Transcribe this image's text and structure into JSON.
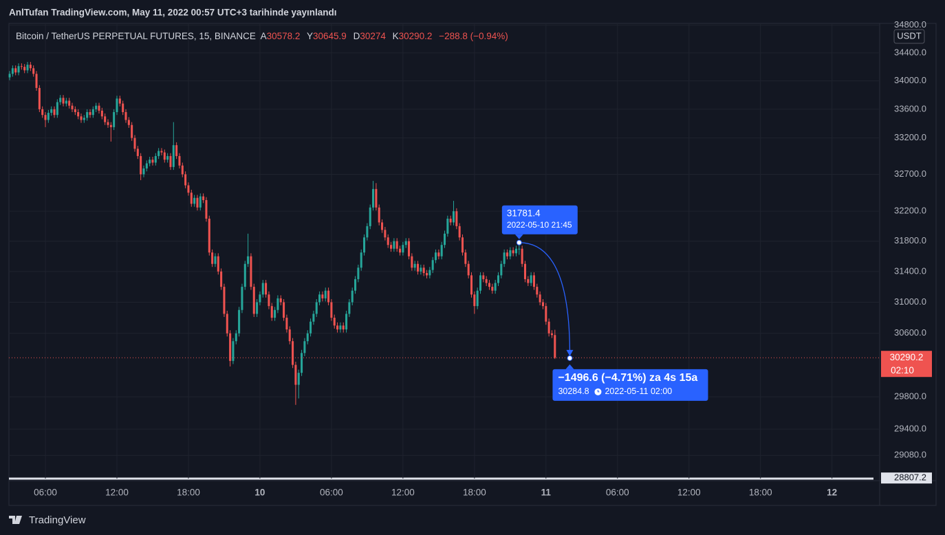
{
  "header": {
    "published": "AnlTufan TradingView.com, May 11, 2022 00:57 UTC+3 tarihinde yayınlandı"
  },
  "footer": {
    "brand": "TradingView"
  },
  "chart_data": {
    "type": "candlestick",
    "title": "Bitcoin / TetherUS PERPETUAL FUTURES, 15, BINANCE",
    "ohlc_labels": [
      "A",
      "Y",
      "D",
      "K"
    ],
    "change": "−288.8 (−0.94%)",
    "currency": "USDT",
    "countdown": "02:10",
    "up_color": "#26a69a",
    "down_color": "#ef5350",
    "grid": true,
    "log_scale": true,
    "xlim": [
      2.94,
      76
    ],
    "xticks": [
      {
        "value": 6,
        "label": "06:00"
      },
      {
        "value": 12,
        "label": "12:00"
      },
      {
        "value": 18,
        "label": "18:00"
      },
      {
        "value": 24,
        "label": "10"
      },
      {
        "value": 30,
        "label": "06:00"
      },
      {
        "value": 36,
        "label": "12:00"
      },
      {
        "value": 42,
        "label": "18:00"
      },
      {
        "value": 48,
        "label": "11"
      },
      {
        "value": 54,
        "label": "06:00"
      },
      {
        "value": 60,
        "label": "12:00"
      },
      {
        "value": 66,
        "label": "18:00"
      },
      {
        "value": 72,
        "label": "12"
      }
    ],
    "ylim": [
      28800,
      34816
    ],
    "yticks": [
      {
        "value": 34800,
        "label": "34800.0"
      },
      {
        "value": 34400,
        "label": "34400.0"
      },
      {
        "value": 34000,
        "label": "34000.0"
      },
      {
        "value": 33600,
        "label": "33600.0"
      },
      {
        "value": 33200,
        "label": "33200.0"
      },
      {
        "value": 32700,
        "label": "32700.0"
      },
      {
        "value": 32200,
        "label": "32200.0"
      },
      {
        "value": 31800,
        "label": "31800.0"
      },
      {
        "value": 31400,
        "label": "31400.0"
      },
      {
        "value": 31000,
        "label": "31000.0"
      },
      {
        "value": 30600,
        "label": "30600.0"
      },
      {
        "value": 29800,
        "label": "29800.0"
      },
      {
        "value": 29400,
        "label": "29400.0"
      },
      {
        "value": 29080,
        "label": "29080.0"
      },
      28807.2
    ],
    "measure": {
      "start": {
        "x": 45.75,
        "y": 31781.4,
        "label": "2022-05-10 21:45"
      },
      "end": {
        "x": 50,
        "y": 30284.8,
        "label": "2022-05-11  02:00"
      },
      "summary": "−1496.6 (−4.71%) za 4s 15a"
    },
    "x": [
      3,
      3.25,
      3.5,
      3.75,
      4,
      4.25,
      4.5,
      4.75,
      5,
      5.25,
      5.5,
      5.75,
      6,
      6.25,
      6.5,
      6.75,
      7,
      7.25,
      7.5,
      7.75,
      8,
      8.25,
      8.5,
      8.75,
      9,
      9.25,
      9.5,
      9.75,
      10,
      10.25,
      10.5,
      10.75,
      11,
      11.25,
      11.5,
      11.75,
      12,
      12.25,
      12.5,
      12.75,
      13,
      13.25,
      13.5,
      13.75,
      14,
      14.25,
      14.5,
      14.75,
      15,
      15.25,
      15.5,
      15.75,
      16,
      16.25,
      16.5,
      16.75,
      17,
      17.25,
      17.5,
      17.75,
      18,
      18.25,
      18.5,
      18.75,
      19,
      19.25,
      19.5,
      19.75,
      20,
      20.25,
      20.5,
      20.75,
      21,
      21.25,
      21.5,
      21.75,
      22,
      22.25,
      22.5,
      22.75,
      23,
      23.25,
      23.5,
      23.75,
      24,
      24.25,
      24.5,
      24.75,
      25,
      25.25,
      25.5,
      25.75,
      26,
      26.25,
      26.5,
      26.75,
      27,
      27.25,
      27.5,
      27.75,
      28,
      28.25,
      28.5,
      28.75,
      29,
      29.25,
      29.5,
      29.75,
      30,
      30.25,
      30.5,
      30.75,
      31,
      31.25,
      31.5,
      31.75,
      32,
      32.25,
      32.5,
      32.75,
      33,
      33.25,
      33.5,
      33.75,
      34,
      34.25,
      34.5,
      34.75,
      35,
      35.25,
      35.5,
      35.75,
      36,
      36.25,
      36.5,
      36.75,
      37,
      37.25,
      37.5,
      37.75,
      38,
      38.25,
      38.5,
      38.75,
      39,
      39.25,
      39.5,
      39.75,
      40,
      40.25,
      40.5,
      40.75,
      41,
      41.25,
      41.5,
      41.75,
      42,
      42.25,
      42.5,
      42.75,
      43,
      43.25,
      43.5,
      43.75,
      44,
      44.25,
      44.5,
      44.75,
      45,
      45.25,
      45.5,
      45.75,
      46,
      46.25,
      46.5,
      46.75,
      47,
      47.25,
      47.5,
      47.75,
      48,
      48.25,
      48.5,
      48.75
    ],
    "open": [
      34050,
      34100,
      34180,
      34120,
      34210,
      34200,
      34150,
      34230,
      34180,
      34100,
      33900,
      33600,
      33520,
      33450,
      33550,
      33600,
      33520,
      33700,
      33760,
      33680,
      33720,
      33650,
      33600,
      33560,
      33500,
      33450,
      33480,
      33560,
      33520,
      33600,
      33650,
      33580,
      33500,
      33420,
      33380,
      33350,
      33560,
      33750,
      33680,
      33560,
      33450,
      33380,
      33200,
      33050,
      32950,
      32700,
      32780,
      32850,
      32900,
      32860,
      32950,
      33020,
      33000,
      32900,
      32950,
      32800,
      33100,
      32950,
      32820,
      32700,
      32550,
      32450,
      32300,
      32380,
      32250,
      32400,
      32350,
      32100,
      31650,
      31500,
      31600,
      31400,
      31200,
      30850,
      30600,
      30250,
      30500,
      30600,
      30900,
      31200,
      31500,
      31600,
      31200,
      30850,
      31000,
      31100,
      31250,
      31100,
      30950,
      30800,
      30900,
      31050,
      31000,
      30800,
      30650,
      30500,
      30200,
      29950,
      30100,
      30350,
      30500,
      30600,
      30750,
      30850,
      31000,
      31100,
      31050,
      31150,
      31000,
      30800,
      30700,
      30650,
      30700,
      30650,
      30850,
      31000,
      31150,
      31300,
      31450,
      31650,
      31850,
      32000,
      32250,
      32500,
      32250,
      32050,
      31950,
      31850,
      31750,
      31700,
      31800,
      31700,
      31650,
      31750,
      31800,
      31600,
      31450,
      31500,
      31400,
      31450,
      31380,
      31350,
      31420,
      31550,
      31650,
      31600,
      31750,
      31900,
      32100,
      32050,
      32200,
      32000,
      31850,
      31650,
      31500,
      31350,
      31100,
      30950,
      31150,
      31350,
      31300,
      31250,
      31200,
      31150,
      31250,
      31350,
      31500,
      31650,
      31600,
      31680,
      31640,
      31700,
      31700,
      31500,
      31300,
      31250,
      31350,
      31200,
      31100,
      31000,
      30950,
      30750,
      30600,
      30578.2
    ],
    "high": [
      34140,
      34220,
      34220,
      34250,
      34250,
      34240,
      34270,
      34270,
      34220,
      34140,
      33940,
      33640,
      33560,
      33590,
      33640,
      33640,
      33740,
      33800,
      33800,
      33760,
      33760,
      33690,
      33640,
      33600,
      33540,
      33520,
      33600,
      33600,
      33640,
      33690,
      33690,
      33620,
      33540,
      33460,
      33420,
      33600,
      33790,
      33790,
      33720,
      33600,
      33490,
      33420,
      33240,
      33090,
      32990,
      32820,
      32890,
      32940,
      32940,
      32990,
      33060,
      33060,
      33040,
      32990,
      32990,
      33420,
      33140,
      32990,
      32860,
      32740,
      32590,
      32490,
      32420,
      32420,
      32440,
      32440,
      32390,
      32140,
      31690,
      31640,
      31640,
      31440,
      31240,
      30890,
      30640,
      30540,
      30640,
      30940,
      31240,
      31540,
      31900,
      31640,
      31240,
      31040,
      31140,
      31290,
      31290,
      31140,
      30990,
      30940,
      31090,
      31090,
      31040,
      30840,
      30690,
      30540,
      30240,
      30140,
      30390,
      30540,
      30640,
      30790,
      30890,
      31040,
      31140,
      31140,
      31190,
      31190,
      31040,
      30840,
      30740,
      30740,
      30740,
      30890,
      31040,
      31190,
      31340,
      31490,
      31690,
      31890,
      32040,
      32290,
      32610,
      32580,
      32290,
      32090,
      31990,
      31890,
      31790,
      31840,
      31840,
      31740,
      31790,
      31840,
      31840,
      31640,
      31540,
      31540,
      31490,
      31490,
      31420,
      31460,
      31590,
      31690,
      31690,
      31790,
      31940,
      32140,
      32140,
      32340,
      32240,
      32040,
      31890,
      31690,
      31540,
      31390,
      31140,
      31190,
      31390,
      31390,
      31340,
      31290,
      31240,
      31290,
      31390,
      31540,
      31690,
      31690,
      31720,
      31720,
      31740,
      31781.4,
      31740,
      31540,
      31340,
      31390,
      31390,
      31240,
      31140,
      31040,
      30990,
      30790,
      30640,
      30645.9
    ],
    "low": [
      34010,
      34060,
      34080,
      34080,
      34160,
      34110,
      34110,
      34140,
      34060,
      33860,
      33560,
      33480,
      33350,
      33410,
      33510,
      33480,
      33480,
      33660,
      33640,
      33640,
      33610,
      33560,
      33520,
      33460,
      33410,
      33410,
      33440,
      33480,
      33480,
      33560,
      33540,
      33460,
      33380,
      33340,
      33150,
      33310,
      33520,
      33640,
      33520,
      33410,
      33340,
      33160,
      33010,
      32910,
      32620,
      32660,
      32740,
      32810,
      32820,
      32820,
      32910,
      32960,
      32860,
      32860,
      32760,
      32760,
      32910,
      32780,
      32660,
      32510,
      32410,
      32260,
      32260,
      32210,
      32210,
      32310,
      32060,
      31610,
      31460,
      31460,
      31360,
      31160,
      30810,
      30560,
      30180,
      30210,
      30460,
      30560,
      30860,
      31160,
      31460,
      31160,
      30810,
      30810,
      30960,
      31060,
      31060,
      30910,
      30760,
      30760,
      30860,
      30960,
      30760,
      30610,
      30460,
      30160,
      29700,
      29780,
      30060,
      30310,
      30460,
      30560,
      30710,
      30810,
      30960,
      31010,
      31010,
      30960,
      30760,
      30660,
      30610,
      30610,
      30610,
      30610,
      30810,
      30960,
      31110,
      31260,
      31410,
      31610,
      31810,
      31960,
      32210,
      32210,
      32010,
      31910,
      31810,
      31710,
      31660,
      31660,
      31660,
      31610,
      31610,
      31710,
      31560,
      31410,
      31410,
      31360,
      31360,
      31340,
      31310,
      31310,
      31380,
      31510,
      31560,
      31560,
      31710,
      31860,
      32010,
      32010,
      31960,
      31810,
      31610,
      31460,
      31310,
      31060,
      30850,
      30910,
      31110,
      31260,
      31210,
      31160,
      31110,
      31110,
      31210,
      31310,
      31460,
      31560,
      31560,
      31600,
      31600,
      31620,
      31460,
      31260,
      31210,
      31210,
      31160,
      31060,
      30960,
      30910,
      30710,
      30560,
      30540,
      30274
    ],
    "close": [
      34100,
      34180,
      34120,
      34210,
      34200,
      34150,
      34230,
      34180,
      34100,
      33900,
      33600,
      33520,
      33450,
      33550,
      33600,
      33520,
      33700,
      33760,
      33680,
      33720,
      33650,
      33600,
      33560,
      33500,
      33450,
      33480,
      33560,
      33520,
      33600,
      33650,
      33580,
      33500,
      33420,
      33380,
      33350,
      33560,
      33750,
      33680,
      33560,
      33450,
      33380,
      33200,
      33050,
      32950,
      32700,
      32780,
      32850,
      32900,
      32860,
      32950,
      33020,
      33000,
      32900,
      32950,
      32800,
      33100,
      32950,
      32820,
      32700,
      32550,
      32450,
      32300,
      32380,
      32250,
      32400,
      32350,
      32100,
      31650,
      31500,
      31600,
      31400,
      31200,
      30850,
      30600,
      30250,
      30500,
      30600,
      30900,
      31200,
      31500,
      31600,
      31200,
      30850,
      31000,
      31100,
      31250,
      31100,
      30950,
      30800,
      30900,
      31050,
      31000,
      30800,
      30650,
      30500,
      30200,
      29950,
      30100,
      30350,
      30500,
      30600,
      30750,
      30850,
      31000,
      31100,
      31050,
      31150,
      31000,
      30800,
      30700,
      30650,
      30700,
      30650,
      30850,
      31000,
      31150,
      31300,
      31450,
      31650,
      31850,
      32000,
      32250,
      32500,
      32250,
      32050,
      31950,
      31850,
      31750,
      31700,
      31800,
      31700,
      31650,
      31750,
      31800,
      31600,
      31450,
      31500,
      31400,
      31450,
      31380,
      31350,
      31420,
      31550,
      31650,
      31600,
      31750,
      31900,
      32100,
      32050,
      32200,
      32000,
      31850,
      31650,
      31500,
      31350,
      31100,
      30950,
      31150,
      31350,
      31300,
      31250,
      31200,
      31150,
      31250,
      31350,
      31500,
      31650,
      31600,
      31680,
      31640,
      31700,
      31700,
      31500,
      31300,
      31250,
      31350,
      31200,
      31100,
      31000,
      30950,
      30750,
      30600,
      30578.2,
      30290.2
    ]
  }
}
